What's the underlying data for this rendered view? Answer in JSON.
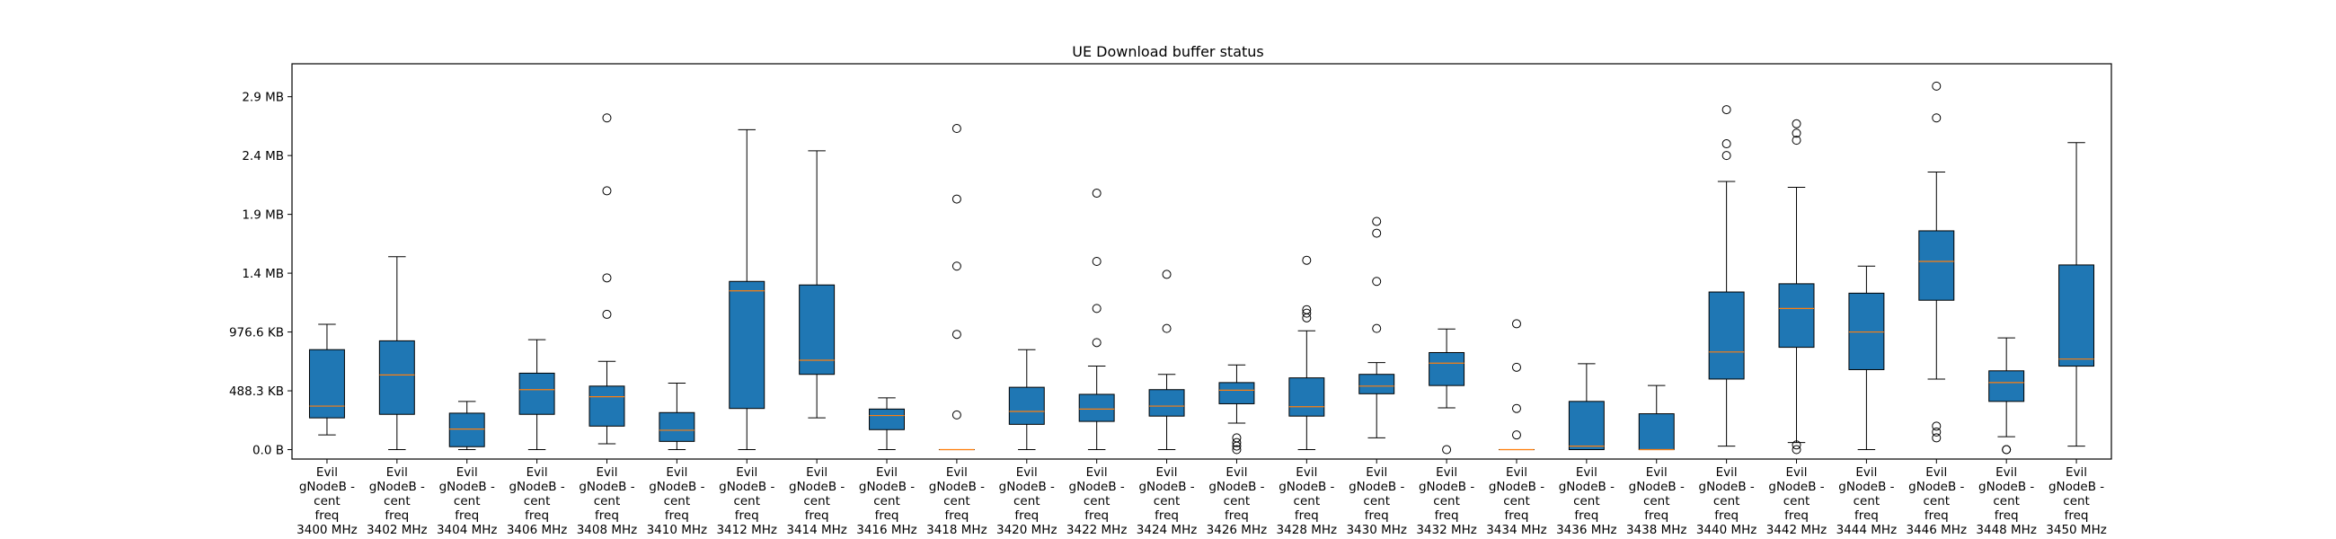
{
  "chart_data": {
    "type": "box",
    "title": "UE Download buffer status",
    "xlabel": "",
    "ylabel": "",
    "y_unit": "bytes",
    "ylim": [
      -80000,
      3280000
    ],
    "grid": false,
    "yticks": [
      {
        "value": 0,
        "label": "0.0 B"
      },
      {
        "value": 500000,
        "label": "488.3 KB"
      },
      {
        "value": 1000000,
        "label": "976.6 KB"
      },
      {
        "value": 1500000,
        "label": "1.4 MB"
      },
      {
        "value": 2000000,
        "label": "1.9 MB"
      },
      {
        "value": 2500000,
        "label": "2.4 MB"
      },
      {
        "value": 3000000,
        "label": "2.9 MB"
      }
    ],
    "colors": {
      "box_fill": "#1f77b4",
      "median": "#ff7f0e",
      "outline": "#000000"
    },
    "categories": [
      [
        "Evil",
        "gNodeB -",
        "cent",
        "freq",
        "3400 MHz"
      ],
      [
        "Evil",
        "gNodeB -",
        "cent",
        "freq",
        "3402 MHz"
      ],
      [
        "Evil",
        "gNodeB -",
        "cent",
        "freq",
        "3404 MHz"
      ],
      [
        "Evil",
        "gNodeB -",
        "cent",
        "freq",
        "3406 MHz"
      ],
      [
        "Evil",
        "gNodeB -",
        "cent",
        "freq",
        "3408 MHz"
      ],
      [
        "Evil",
        "gNodeB -",
        "cent",
        "freq",
        "3410 MHz"
      ],
      [
        "Evil",
        "gNodeB -",
        "cent",
        "freq",
        "3412 MHz"
      ],
      [
        "Evil",
        "gNodeB -",
        "cent",
        "freq",
        "3414 MHz"
      ],
      [
        "Evil",
        "gNodeB -",
        "cent",
        "freq",
        "3416 MHz"
      ],
      [
        "Evil",
        "gNodeB -",
        "cent",
        "freq",
        "3418 MHz"
      ],
      [
        "Evil",
        "gNodeB -",
        "cent",
        "freq",
        "3420 MHz"
      ],
      [
        "Evil",
        "gNodeB -",
        "cent",
        "freq",
        "3422 MHz"
      ],
      [
        "Evil",
        "gNodeB -",
        "cent",
        "freq",
        "3424 MHz"
      ],
      [
        "Evil",
        "gNodeB -",
        "cent",
        "freq",
        "3426 MHz"
      ],
      [
        "Evil",
        "gNodeB -",
        "cent",
        "freq",
        "3428 MHz"
      ],
      [
        "Evil",
        "gNodeB -",
        "cent",
        "freq",
        "3430 MHz"
      ],
      [
        "Evil",
        "gNodeB -",
        "cent",
        "freq",
        "3432 MHz"
      ],
      [
        "Evil",
        "gNodeB -",
        "cent",
        "freq",
        "3434 MHz"
      ],
      [
        "Evil",
        "gNodeB -",
        "cent",
        "freq",
        "3436 MHz"
      ],
      [
        "Evil",
        "gNodeB -",
        "cent",
        "freq",
        "3438 MHz"
      ],
      [
        "Evil",
        "gNodeB -",
        "cent",
        "freq",
        "3440 MHz"
      ],
      [
        "Evil",
        "gNodeB -",
        "cent",
        "freq",
        "3442 MHz"
      ],
      [
        "Evil",
        "gNodeB -",
        "cent",
        "freq",
        "3444 MHz"
      ],
      [
        "Evil",
        "gNodeB -",
        "cent",
        "freq",
        "3446 MHz"
      ],
      [
        "Evil",
        "gNodeB -",
        "cent",
        "freq",
        "3448 MHz"
      ],
      [
        "Evil",
        "gNodeB -",
        "cent",
        "freq",
        "3450 MHz"
      ]
    ],
    "boxes": [
      {
        "whislo": 125000,
        "q1": 270000,
        "med": 370000,
        "q3": 850000,
        "whishi": 1065000,
        "fliers": []
      },
      {
        "whislo": 0,
        "q1": 300000,
        "med": 635000,
        "q3": 925000,
        "whishi": 1640000,
        "fliers": []
      },
      {
        "whislo": 0,
        "q1": 25000,
        "med": 175000,
        "q3": 310000,
        "whishi": 410000,
        "fliers": []
      },
      {
        "whislo": 0,
        "q1": 300000,
        "med": 510000,
        "q3": 650000,
        "whishi": 935000,
        "fliers": []
      },
      {
        "whislo": 50000,
        "q1": 200000,
        "med": 450000,
        "q3": 540000,
        "whishi": 750000,
        "fliers": [
          1150000,
          1460000,
          2200000,
          2820000
        ]
      },
      {
        "whislo": 0,
        "q1": 70000,
        "med": 165000,
        "q3": 315000,
        "whishi": 565000,
        "fliers": []
      },
      {
        "whislo": 0,
        "q1": 350000,
        "med": 1350000,
        "q3": 1430000,
        "whishi": 2720000,
        "fliers": []
      },
      {
        "whislo": 270000,
        "q1": 640000,
        "med": 760000,
        "q3": 1400000,
        "whishi": 2540000,
        "fliers": []
      },
      {
        "whislo": 0,
        "q1": 170000,
        "med": 290000,
        "q3": 345000,
        "whishi": 440000,
        "fliers": []
      },
      {
        "whislo": 0,
        "q1": 0,
        "med": 0,
        "q3": 0,
        "whishi": 0,
        "fliers": [
          295000,
          980000,
          1560000,
          2130000,
          2730000
        ]
      },
      {
        "whislo": 0,
        "q1": 215000,
        "med": 325000,
        "q3": 530000,
        "whishi": 850000,
        "fliers": []
      },
      {
        "whislo": 0,
        "q1": 240000,
        "med": 345000,
        "q3": 470000,
        "whishi": 710000,
        "fliers": [
          910000,
          1200000,
          1600000,
          2180000
        ]
      },
      {
        "whislo": 0,
        "q1": 285000,
        "med": 370000,
        "q3": 510000,
        "whishi": 640000,
        "fliers": [
          1030000,
          1490000
        ]
      },
      {
        "whislo": 225000,
        "q1": 390000,
        "med": 505000,
        "q3": 570000,
        "whishi": 720000,
        "fliers": [
          0,
          30000,
          60000,
          100000
        ]
      },
      {
        "whislo": 0,
        "q1": 285000,
        "med": 365000,
        "q3": 610000,
        "whishi": 1010000,
        "fliers": [
          1120000,
          1160000,
          1190000,
          1610000
        ]
      },
      {
        "whislo": 100000,
        "q1": 475000,
        "med": 540000,
        "q3": 640000,
        "whishi": 740000,
        "fliers": [
          1030000,
          1430000,
          1840000,
          1940000
        ]
      },
      {
        "whislo": 355000,
        "q1": 545000,
        "med": 735000,
        "q3": 825000,
        "whishi": 1025000,
        "fliers": [
          0
        ]
      },
      {
        "whislo": 0,
        "q1": 0,
        "med": 0,
        "q3": 0,
        "whishi": 0,
        "fliers": [
          125000,
          350000,
          700000,
          1070000
        ]
      },
      {
        "whislo": 0,
        "q1": 0,
        "med": 30000,
        "q3": 410000,
        "whishi": 730000,
        "fliers": []
      },
      {
        "whislo": 0,
        "q1": 0,
        "med": 0,
        "q3": 305000,
        "whishi": 545000,
        "fliers": []
      },
      {
        "whislo": 30000,
        "q1": 600000,
        "med": 830000,
        "q3": 1340000,
        "whishi": 2280000,
        "fliers": [
          2500000,
          2600000,
          2890000
        ]
      },
      {
        "whislo": 60000,
        "q1": 870000,
        "med": 1200000,
        "q3": 1410000,
        "whishi": 2230000,
        "fliers": [
          0,
          40000,
          2630000,
          2690000,
          2770000
        ]
      },
      {
        "whislo": 0,
        "q1": 680000,
        "med": 1000000,
        "q3": 1330000,
        "whishi": 1560000,
        "fliers": []
      },
      {
        "whislo": 600000,
        "q1": 1270000,
        "med": 1600000,
        "q3": 1860000,
        "whishi": 2360000,
        "fliers": [
          100000,
          150000,
          200000,
          2820000,
          3090000
        ]
      },
      {
        "whislo": 110000,
        "q1": 410000,
        "med": 570000,
        "q3": 670000,
        "whishi": 950000,
        "fliers": [
          0,
          0
        ]
      },
      {
        "whislo": 30000,
        "q1": 710000,
        "med": 770000,
        "q3": 1570000,
        "whishi": 2610000,
        "fliers": []
      }
    ]
  }
}
